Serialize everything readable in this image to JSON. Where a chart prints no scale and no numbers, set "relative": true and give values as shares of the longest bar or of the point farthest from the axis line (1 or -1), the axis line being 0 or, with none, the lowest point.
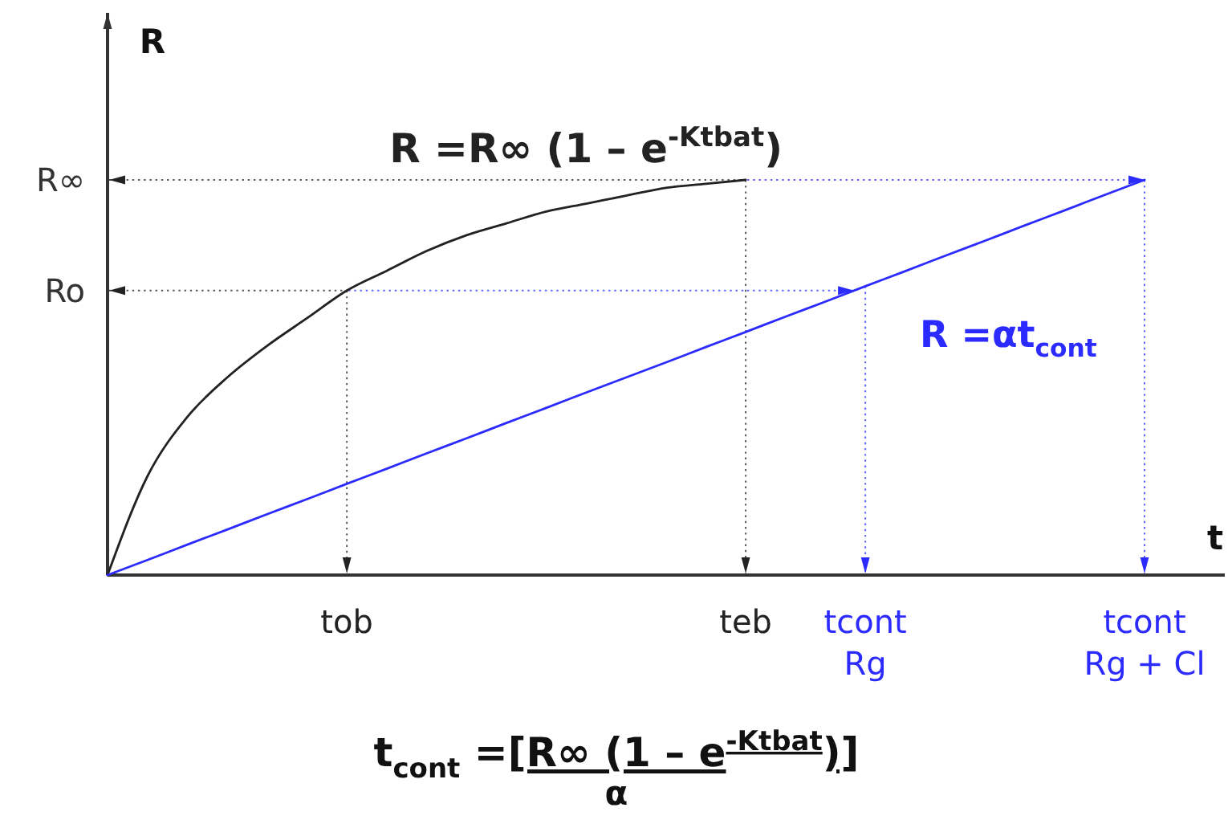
{
  "chart_data": {
    "type": "line",
    "relative": true,
    "categories": [
      null,
      null,
      null,
      null,
      null,
      null,
      "tob",
      null,
      null,
      null,
      null,
      null,
      null,
      null,
      null,
      null,
      "teb",
      null,
      null,
      "tcont\nRg",
      null,
      null,
      null,
      null,
      null,
      null,
      "tcont\nRg + Cl"
    ],
    "series": [
      {
        "name": "R =R∞ (1 – e$^{-Ktbat}$)",
        "color": "#222222",
        "values": [
          0,
          0.25,
          0.4,
          0.5,
          0.58,
          0.65,
          0.72,
          0.77,
          0.82,
          0.86,
          0.89,
          0.92,
          0.94,
          0.96,
          0.98,
          0.99,
          1,
          null,
          null,
          null,
          null,
          null,
          null,
          null,
          null,
          null,
          null
        ]
      },
      {
        "name": "R =αt$_{cont}$",
        "color": "#2b2bff",
        "values": [
          0,
          0.038,
          0.077,
          0.115,
          0.154,
          0.192,
          0.231,
          0.269,
          0.308,
          0.346,
          0.385,
          0.423,
          0.462,
          0.5,
          0.538,
          0.577,
          0.615,
          0.654,
          0.692,
          0.731,
          0.769,
          0.808,
          0.846,
          0.885,
          0.923,
          0.962,
          1
        ]
      }
    ],
    "xlabel": "t",
    "ylabel": "R",
    "ref_lines": [
      {
        "axis": "y",
        "value": 1,
        "label": "R∞",
        "line_style": "dotted"
      },
      {
        "axis": "y",
        "value": 0.72,
        "label": "Ro",
        "line_style": "dotted"
      },
      {
        "axis": "x",
        "value": "tob",
        "line_style": "dotted"
      },
      {
        "axis": "x",
        "value": "teb",
        "line_style": "dotted"
      },
      {
        "axis": "x",
        "value": "tcont\nRg",
        "line_style": "dotted"
      },
      {
        "axis": "x",
        "value": "tcont\nRg + Cl",
        "line_style": "dotted"
      }
    ],
    "annotations": [
      "t$_{cont}$ =",
      "[R∞ (1 – e$^{-Ktbat}$)]",
      "α"
    ]
  }
}
